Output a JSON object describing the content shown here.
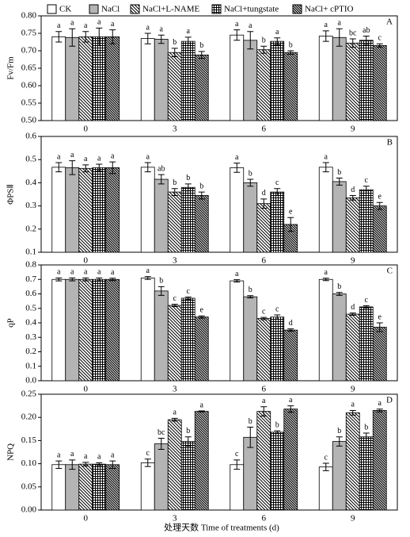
{
  "legend": [
    {
      "name": "CK",
      "color": "#ffffff",
      "pattern": "none"
    },
    {
      "name": "NaCl",
      "color": "#b4b4b4",
      "pattern": "none"
    },
    {
      "name": "NaCl+L-NAME",
      "color": "#ffffff",
      "pattern": "diagonal"
    },
    {
      "name": "NaCl+tungstate",
      "color": "#ffffff",
      "pattern": "grid"
    },
    {
      "name": "NaCl+ cPTIO",
      "color": "#ffffff",
      "pattern": "dense-diagonal"
    }
  ],
  "xlabel": "处理天数 Time of treatments (d)",
  "chart_data": [
    {
      "type": "bar",
      "annotation": "A",
      "ylabel": "Fv/Fm",
      "categories": [
        "0",
        "3",
        "6",
        "9"
      ],
      "ylim": [
        0.5,
        0.8
      ],
      "yticks": [
        {
          "value": 0.5,
          "label": "0.50"
        },
        0.55,
        {
          "value": 0.6,
          "label": "0.60"
        },
        0.65,
        {
          "value": 0.7,
          "label": "0.70"
        },
        0.75,
        {
          "value": 0.8,
          "label": "0.80"
        }
      ],
      "series": [
        {
          "values": [
            0.74,
            0.735,
            0.745,
            0.742
          ],
          "errors": [
            0.015,
            0.015,
            0.015,
            0.015
          ],
          "letters": [
            "a",
            "a",
            "a",
            "a"
          ]
        },
        {
          "values": [
            0.738,
            0.733,
            0.73,
            0.738
          ],
          "errors": [
            0.025,
            0.012,
            0.025,
            0.025
          ],
          "letters": [
            "a",
            "a",
            "a",
            "a"
          ]
        },
        {
          "values": [
            0.74,
            0.695,
            0.703,
            0.722
          ],
          "errors": [
            0.015,
            0.012,
            0.01,
            0.012
          ],
          "letters": [
            "a",
            "b",
            "b",
            "bc"
          ]
        },
        {
          "values": [
            0.74,
            0.727,
            0.727,
            0.73
          ],
          "errors": [
            0.025,
            0.012,
            0.01,
            0.012
          ],
          "letters": [
            "a",
            "a",
            "a",
            "ab"
          ]
        },
        {
          "values": [
            0.74,
            0.688,
            0.695,
            0.715
          ],
          "errors": [
            0.02,
            0.01,
            0.005,
            0.005
          ],
          "letters": [
            "a",
            "b",
            "b",
            "c"
          ]
        }
      ]
    },
    {
      "type": "bar",
      "annotation": "B",
      "ylabel": "ΦPSⅡ",
      "categories": [
        "0",
        "3",
        "6",
        "9"
      ],
      "ylim": [
        0.1,
        0.6
      ],
      "yticks": [
        0.1,
        0.2,
        0.3,
        0.4,
        0.5,
        0.6
      ],
      "series": [
        {
          "values": [
            0.467,
            0.467,
            0.465,
            0.467
          ],
          "errors": [
            0.02,
            0.02,
            0.02,
            0.02
          ],
          "letters": [
            "a",
            "a",
            "a",
            "a"
          ]
        },
        {
          "values": [
            0.465,
            0.415,
            0.4,
            0.405
          ],
          "errors": [
            0.03,
            0.02,
            0.015,
            0.015
          ],
          "letters": [
            "a",
            "ab",
            "b",
            "b"
          ]
        },
        {
          "values": [
            0.462,
            0.36,
            0.31,
            0.335
          ],
          "errors": [
            0.015,
            0.015,
            0.02,
            0.01
          ],
          "letters": [
            "a",
            "b",
            "d",
            "d"
          ]
        },
        {
          "values": [
            0.465,
            0.38,
            0.36,
            0.37
          ],
          "errors": [
            0.015,
            0.015,
            0.015,
            0.015
          ],
          "letters": [
            "a",
            "b",
            "c",
            "c"
          ]
        },
        {
          "values": [
            0.465,
            0.345,
            0.22,
            0.3
          ],
          "errors": [
            0.025,
            0.015,
            0.03,
            0.015
          ],
          "letters": [
            "a",
            "b",
            "e",
            "e"
          ]
        }
      ]
    },
    {
      "type": "bar",
      "annotation": "C",
      "ylabel": "qP",
      "categories": [
        "0",
        "3",
        "6",
        "9"
      ],
      "ylim": [
        0,
        0.8
      ],
      "yticks": [
        {
          "value": 0,
          "label": "0.0"
        },
        0.1,
        0.2,
        0.3,
        0.4,
        0.5,
        0.6,
        0.7,
        0.8
      ],
      "series": [
        {
          "values": [
            0.7,
            0.71,
            0.69,
            0.7
          ],
          "errors": [
            0.01,
            0.01,
            0.008,
            0.008
          ],
          "letters": [
            "a",
            "a",
            "a",
            "a"
          ]
        },
        {
          "values": [
            0.7,
            0.62,
            0.58,
            0.6
          ],
          "errors": [
            0.01,
            0.03,
            0.008,
            0.01
          ],
          "letters": [
            "a",
            "b",
            "b",
            "b"
          ]
        },
        {
          "values": [
            0.7,
            0.52,
            0.43,
            0.46
          ],
          "errors": [
            0.01,
            0.008,
            0.008,
            0.008
          ],
          "letters": [
            "a",
            "c",
            "c",
            "d"
          ]
        },
        {
          "values": [
            0.7,
            0.57,
            0.44,
            0.51
          ],
          "errors": [
            0.01,
            0.008,
            0.015,
            0.008
          ],
          "letters": [
            "a",
            "c",
            "c",
            "c"
          ]
        },
        {
          "values": [
            0.7,
            0.44,
            0.35,
            0.37
          ],
          "errors": [
            0.008,
            0.008,
            0.008,
            0.03
          ],
          "letters": [
            "a",
            "e",
            "d",
            "e"
          ]
        }
      ]
    },
    {
      "type": "bar",
      "annotation": "D",
      "ylabel": "NPQ",
      "categories": [
        "0",
        "3",
        "6",
        "9"
      ],
      "ylim": [
        0,
        0.25
      ],
      "yticks": [
        {
          "value": 0,
          "label": "0.00"
        },
        0.05,
        {
          "value": 0.1,
          "label": "0.10"
        },
        0.15,
        {
          "value": 0.2,
          "label": "0.20"
        },
        0.25
      ],
      "series": [
        {
          "values": [
            0.098,
            0.102,
            0.098,
            0.093
          ],
          "errors": [
            0.008,
            0.008,
            0.01,
            0.008
          ],
          "letters": [
            "a",
            "c",
            "c",
            "c"
          ]
        },
        {
          "values": [
            0.098,
            0.143,
            0.157,
            0.148
          ],
          "errors": [
            0.01,
            0.012,
            0.022,
            0.01
          ],
          "letters": [
            "a",
            "bc",
            "b",
            "b"
          ]
        },
        {
          "values": [
            0.099,
            0.195,
            0.213,
            0.21
          ],
          "errors": [
            0.004,
            0.003,
            0.01,
            0.005
          ],
          "letters": [
            "a",
            "a",
            "a",
            "a"
          ]
        },
        {
          "values": [
            0.099,
            0.148,
            0.168,
            0.158
          ],
          "errors": [
            0.003,
            0.01,
            0.003,
            0.008
          ],
          "letters": [
            "a",
            "b",
            "b",
            "b"
          ]
        },
        {
          "values": [
            0.098,
            0.213,
            0.218,
            0.215
          ],
          "errors": [
            0.008,
            0.001,
            0.007,
            0.003
          ],
          "letters": [
            "a",
            "a",
            "a",
            "a"
          ]
        }
      ]
    }
  ]
}
